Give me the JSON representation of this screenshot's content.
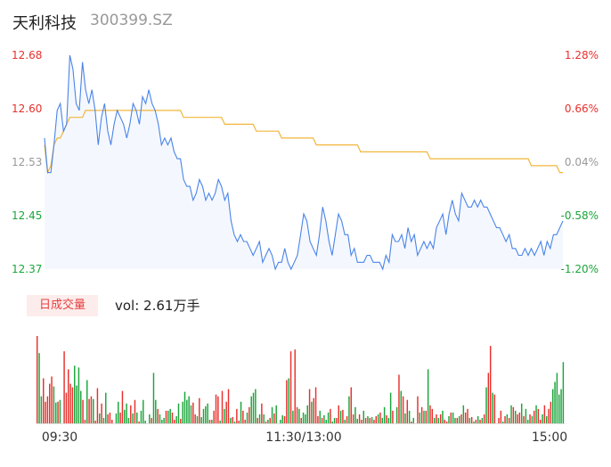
{
  "header": {
    "name": "天利科技",
    "code": "300399.SZ"
  },
  "volume_tab": {
    "label": "日成交量"
  },
  "volume_summary": {
    "text": "vol: 2.61万手"
  },
  "colors": {
    "up": "#e8302c",
    "down": "#1aa53a",
    "price_line": "#4a84e8",
    "avg_line": "#f2b53a",
    "area_fill": "#f4f8fe"
  },
  "chart_data": [
    {
      "type": "line",
      "title": "",
      "series": [
        {
          "name": "",
          "role": "price",
          "values": [
            12.56,
            12.51,
            12.51,
            12.55,
            12.6,
            12.61,
            12.57,
            12.58,
            12.68,
            12.66,
            12.61,
            12.6,
            12.67,
            12.63,
            12.61,
            12.63,
            12.6,
            12.55,
            12.59,
            12.61,
            12.57,
            12.55,
            12.58,
            12.6,
            12.59,
            12.58,
            12.56,
            12.58,
            12.61,
            12.6,
            12.58,
            12.62,
            12.61,
            12.63,
            12.61,
            12.6,
            12.58,
            12.55,
            12.56,
            12.55,
            12.56,
            12.54,
            12.53,
            12.53,
            12.5,
            12.49,
            12.49,
            12.47,
            12.48,
            12.5,
            12.49,
            12.47,
            12.48,
            12.47,
            12.48,
            12.5,
            12.49,
            12.47,
            12.48,
            12.44,
            12.42,
            12.41,
            12.42,
            12.41,
            12.41,
            12.4,
            12.39,
            12.4,
            12.41,
            12.38,
            12.39,
            12.4,
            12.39,
            12.37,
            12.38,
            12.38,
            12.4,
            12.38,
            12.37,
            12.38,
            12.39,
            12.42,
            12.45,
            12.44,
            12.41,
            12.4,
            12.39,
            12.42,
            12.46,
            12.44,
            12.41,
            12.39,
            12.42,
            12.45,
            12.44,
            12.42,
            12.42,
            12.39,
            12.4,
            12.38,
            12.38,
            12.38,
            12.39,
            12.39,
            12.38,
            12.38,
            12.38,
            12.37,
            12.39,
            12.38,
            12.42,
            12.41,
            12.41,
            12.42,
            12.4,
            12.43,
            12.41,
            12.42,
            12.39,
            12.4,
            12.41,
            12.4,
            12.41,
            12.4,
            12.43,
            12.44,
            12.45,
            12.42,
            12.45,
            12.47,
            12.45,
            12.44,
            12.48,
            12.47,
            12.46,
            12.46,
            12.47,
            12.46,
            12.47,
            12.46,
            12.46,
            12.45,
            12.44,
            12.43,
            12.43,
            12.42,
            12.41,
            12.42,
            12.4,
            12.4,
            12.39,
            12.39,
            12.4,
            12.39,
            12.4,
            12.39,
            12.4,
            12.41,
            12.39,
            12.41,
            12.4,
            12.42,
            12.42,
            12.43,
            12.44
          ]
        },
        {
          "name": "",
          "role": "average",
          "values": [
            12.55,
            12.51,
            12.52,
            12.55,
            12.56,
            12.56,
            12.57,
            12.58,
            12.59,
            12.59,
            12.59,
            12.59,
            12.59,
            12.6,
            12.6,
            12.6,
            12.6,
            12.6,
            12.6,
            12.6,
            12.6,
            12.6,
            12.6,
            12.6,
            12.6,
            12.6,
            12.6,
            12.6,
            12.6,
            12.6,
            12.6,
            12.6,
            12.6,
            12.6,
            12.6,
            12.6,
            12.6,
            12.6,
            12.6,
            12.6,
            12.6,
            12.6,
            12.6,
            12.6,
            12.59,
            12.59,
            12.59,
            12.59,
            12.59,
            12.59,
            12.59,
            12.59,
            12.59,
            12.59,
            12.59,
            12.59,
            12.59,
            12.58,
            12.58,
            12.58,
            12.58,
            12.58,
            12.58,
            12.58,
            12.58,
            12.58,
            12.58,
            12.57,
            12.57,
            12.57,
            12.57,
            12.57,
            12.57,
            12.57,
            12.57,
            12.56,
            12.56,
            12.56,
            12.56,
            12.56,
            12.56,
            12.56,
            12.56,
            12.56,
            12.56,
            12.56,
            12.55,
            12.55,
            12.55,
            12.55,
            12.55,
            12.55,
            12.55,
            12.55,
            12.55,
            12.55,
            12.55,
            12.55,
            12.55,
            12.55,
            12.54,
            12.54,
            12.54,
            12.54,
            12.54,
            12.54,
            12.54,
            12.54,
            12.54,
            12.54,
            12.54,
            12.54,
            12.54,
            12.54,
            12.54,
            12.54,
            12.54,
            12.54,
            12.54,
            12.54,
            12.54,
            12.54,
            12.53,
            12.53,
            12.53,
            12.53,
            12.53,
            12.53,
            12.53,
            12.53,
            12.53,
            12.53,
            12.53,
            12.53,
            12.53,
            12.53,
            12.53,
            12.53,
            12.53,
            12.53,
            12.53,
            12.53,
            12.53,
            12.53,
            12.53,
            12.53,
            12.53,
            12.53,
            12.53,
            12.53,
            12.53,
            12.53,
            12.53,
            12.53,
            12.52,
            12.52,
            12.52,
            12.52,
            12.52,
            12.52,
            12.52,
            12.52,
            12.52,
            12.51,
            12.51
          ]
        }
      ],
      "ylim": [
        12.37,
        12.68
      ],
      "ytick_labels_left": [
        "12.68",
        "12.60",
        "12.53",
        "12.45",
        "12.37"
      ],
      "ytick_labels_right": [
        "1.28%",
        "0.66%",
        "0.04%",
        "-0.58%",
        "-1.20%"
      ],
      "xtick_labels": [
        "09:30",
        "11:30/13:00",
        "15:00"
      ]
    },
    {
      "type": "bar",
      "title": "",
      "series_name": "日成交量",
      "values": [
        97,
        78,
        30,
        50,
        24,
        30,
        44,
        52,
        41,
        23,
        24,
        26,
        0,
        80,
        34,
        60,
        44,
        40,
        64,
        42,
        62,
        36,
        26,
        4,
        48,
        27,
        30,
        27,
        3,
        39,
        11,
        22,
        6,
        34,
        10,
        12,
        4,
        0,
        11,
        24,
        12,
        36,
        15,
        22,
        6,
        20,
        11,
        26,
        12,
        2,
        14,
        26,
        3,
        0,
        10,
        6,
        56,
        26,
        16,
        10,
        4,
        6,
        14,
        14,
        16,
        12,
        4,
        8,
        22,
        5,
        24,
        35,
        26,
        30,
        20,
        23,
        10,
        8,
        28,
        7,
        16,
        19,
        22,
        4,
        4,
        14,
        32,
        30,
        3,
        36,
        16,
        24,
        38,
        6,
        7,
        2,
        16,
        3,
        24,
        14,
        4,
        12,
        18,
        30,
        34,
        38,
        6,
        10,
        22,
        10,
        2,
        4,
        6,
        18,
        11,
        20,
        0,
        4,
        9,
        8,
        48,
        50,
        80,
        14,
        82,
        18,
        16,
        6,
        12,
        10,
        20,
        38,
        24,
        28,
        40,
        8,
        14,
        6,
        9,
        4,
        12,
        16,
        2,
        6,
        6,
        20,
        14,
        15,
        4,
        8,
        30,
        40,
        10,
        18,
        5,
        10,
        4,
        14,
        6,
        8,
        6,
        7,
        4,
        8,
        10,
        12,
        6,
        18,
        9,
        6,
        34,
        14,
        0,
        18,
        54,
        36,
        30,
        11,
        26,
        14,
        2,
        6,
        0,
        30,
        12,
        18,
        14,
        14,
        60,
        20,
        16,
        6,
        10,
        6,
        10,
        14,
        4,
        2,
        8,
        12,
        12,
        6,
        6,
        8,
        10,
        20,
        12,
        16,
        6,
        7,
        2,
        4,
        8,
        4,
        6,
        10,
        40,
        56,
        86,
        34,
        32,
        0,
        6,
        14,
        2,
        8,
        10,
        6,
        20,
        18,
        14,
        10,
        12,
        22,
        8,
        16,
        4,
        10,
        8,
        14,
        20,
        16,
        4,
        10,
        20,
        8,
        16,
        24,
        38,
        46,
        56,
        32,
        38,
        68
      ],
      "up": [
        1,
        0,
        0,
        1,
        1,
        1,
        1,
        1,
        0,
        0,
        1,
        0,
        1,
        1,
        1,
        1,
        1,
        1,
        0,
        0,
        0,
        0,
        1,
        1,
        0,
        1,
        1,
        0,
        1,
        1,
        0,
        1,
        0,
        0,
        1,
        1,
        1,
        0,
        0,
        0,
        1,
        1,
        0,
        0,
        0,
        1,
        0,
        1,
        0,
        1,
        0,
        0,
        0,
        1,
        0,
        1,
        0,
        0,
        1,
        0,
        0,
        0,
        1,
        0,
        0,
        1,
        1,
        0,
        0,
        1,
        0,
        0,
        0,
        0,
        0,
        1,
        1,
        0,
        1,
        0,
        0,
        0,
        0,
        1,
        0,
        1,
        1,
        1,
        0,
        1,
        0,
        1,
        1,
        0,
        1,
        0,
        1,
        1,
        0,
        1,
        1,
        0,
        1,
        0,
        0,
        0,
        1,
        0,
        1,
        0,
        1,
        0,
        1,
        0,
        1,
        0,
        1,
        0,
        0,
        1,
        1,
        0,
        1,
        0,
        1,
        1,
        0,
        1,
        0,
        0,
        0,
        1,
        0,
        1,
        1,
        1,
        0,
        1,
        0,
        0,
        0,
        1,
        0,
        0,
        1,
        1,
        0,
        1,
        0,
        1,
        0,
        1,
        1,
        0,
        0,
        1,
        1,
        0,
        1,
        0,
        1,
        0,
        1,
        1,
        0,
        1,
        0,
        0,
        1,
        0,
        0,
        1,
        1,
        0,
        1,
        0,
        1,
        0,
        1,
        0,
        1,
        0,
        1,
        1,
        0,
        1,
        0,
        1,
        0,
        1,
        1,
        0,
        1,
        0,
        1,
        0,
        1,
        1,
        0,
        1,
        0,
        0,
        1,
        0,
        1,
        0,
        1,
        1,
        0,
        1,
        0,
        1,
        0,
        1,
        0,
        1,
        0,
        1,
        1,
        0,
        1,
        0,
        1,
        1,
        0,
        1,
        0,
        1,
        0,
        1,
        0,
        1,
        1,
        0,
        1,
        0,
        0,
        1,
        0,
        1,
        0,
        1,
        1,
        0,
        1,
        0,
        1,
        1,
        0
      ]
    }
  ]
}
